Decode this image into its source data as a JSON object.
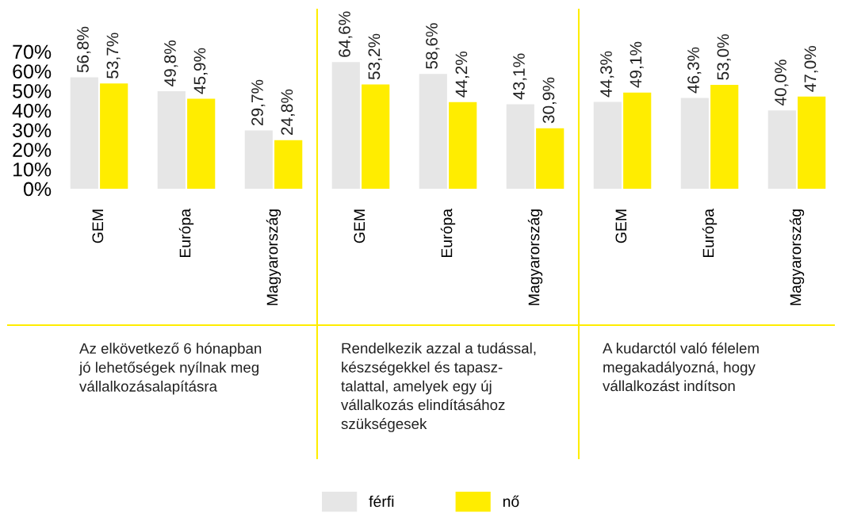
{
  "chart_data": {
    "type": "bar",
    "categories": [
      "GEM",
      "Európa",
      "Magyarország",
      "GEM",
      "Európa",
      "Magyarország",
      "GEM",
      "Európa",
      "Magyarország"
    ],
    "series": [
      {
        "name": "férfi",
        "color": "#e6e6e6",
        "values": [
          56.8,
          49.8,
          29.7,
          64.6,
          58.6,
          43.1,
          44.3,
          46.3,
          40.0
        ],
        "value_labels": [
          "56,8%",
          "49,8%",
          "29,7%",
          "64,6%",
          "58,6%",
          "43,1%",
          "44,3%",
          "46,3%",
          "40,0%"
        ]
      },
      {
        "name": "nő",
        "color": "#ffed00",
        "values": [
          53.7,
          45.9,
          24.8,
          53.2,
          44.2,
          30.9,
          49.1,
          53.0,
          47.0
        ],
        "value_labels": [
          "53,7%",
          "45,9%",
          "24,8%",
          "53,2%",
          "44,2%",
          "30,9%",
          "49,1%",
          "53,0%",
          "47,0%"
        ]
      }
    ],
    "ylim": [
      0,
      70
    ],
    "yticks": [
      {
        "value": 0,
        "label": "0%"
      },
      {
        "value": 10,
        "label": "10%"
      },
      {
        "value": 20,
        "label": "20%"
      },
      {
        "value": 30,
        "label": "30%"
      },
      {
        "value": 40,
        "label": "40%"
      },
      {
        "value": 50,
        "label": "50%"
      },
      {
        "value": 60,
        "label": "60%"
      },
      {
        "value": 70,
        "label": "70%"
      }
    ],
    "annotations": [
      "Az elkövetkező 6 hónapban\njó lehetőségek nyílnak meg\nvállalkozásalapításra",
      "Rendelkezik azzal a tudással,\nkészségekkel és tapasz-\ntalattal, amelyek egy új\nvállalkozás elindításához\nszükségesek",
      "A kudarctól való félelem\nmegakadályozná, hogy\nvállalkozást indítson"
    ],
    "grid": false,
    "legend": "bottom"
  }
}
